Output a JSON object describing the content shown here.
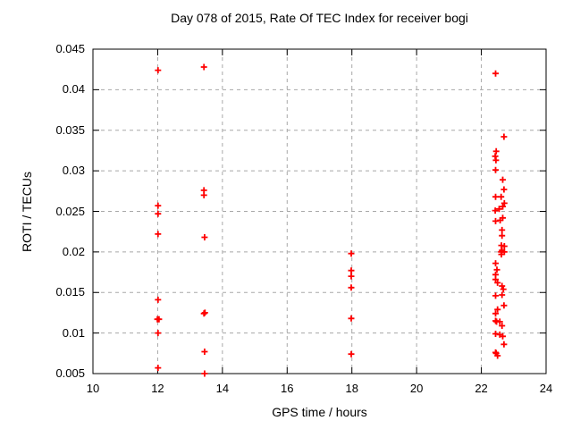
{
  "chart_data": {
    "type": "scatter",
    "title": "Day 078 of 2015, Rate Of TEC Index for receiver bogi",
    "xlabel": "GPS time / hours",
    "ylabel": "ROTI / TECUs",
    "xlim": [
      10,
      24
    ],
    "ylim": [
      0.005,
      0.045
    ],
    "xticks": [
      10,
      12,
      14,
      16,
      18,
      20,
      22,
      24
    ],
    "xtick_labels": [
      "10",
      "12",
      "14",
      "16",
      "18",
      "20",
      "22",
      "24"
    ],
    "yticks": [
      0.005,
      0.01,
      0.015,
      0.02,
      0.025,
      0.03,
      0.035,
      0.04,
      0.045
    ],
    "ytick_labels": [
      "0.005",
      "0.01",
      "0.015",
      "0.02",
      "0.025",
      "0.03",
      "0.035",
      "0.04",
      "0.045"
    ],
    "grid": true,
    "legend_position": "none",
    "marker": "plus",
    "colors": {
      "marker": "#ff0000",
      "grid": "#a8a8a8",
      "axis": "#000000",
      "background": "#ffffff"
    },
    "series": [
      {
        "name": "ROTI",
        "points": [
          [
            12.01,
            0.0424
          ],
          [
            12.01,
            0.0257
          ],
          [
            12.01,
            0.0247
          ],
          [
            12.01,
            0.0222
          ],
          [
            12.01,
            0.0141
          ],
          [
            11.99,
            0.0117
          ],
          [
            12.04,
            0.0117
          ],
          [
            12.01,
            0.01
          ],
          [
            12.01,
            0.0057
          ],
          [
            13.43,
            0.0428
          ],
          [
            13.43,
            0.0276
          ],
          [
            13.43,
            0.027
          ],
          [
            13.45,
            0.0218
          ],
          [
            13.43,
            0.0124
          ],
          [
            13.46,
            0.0125
          ],
          [
            13.45,
            0.0077
          ],
          [
            13.45,
            0.005
          ],
          [
            17.98,
            0.0198
          ],
          [
            17.98,
            0.0177
          ],
          [
            17.98,
            0.017
          ],
          [
            17.98,
            0.0156
          ],
          [
            17.98,
            0.0118
          ],
          [
            17.98,
            0.0074
          ],
          [
            22.44,
            0.042
          ],
          [
            22.7,
            0.0342
          ],
          [
            22.46,
            0.0324
          ],
          [
            22.43,
            0.0318
          ],
          [
            22.45,
            0.0313
          ],
          [
            22.44,
            0.0301
          ],
          [
            22.66,
            0.0289
          ],
          [
            22.7,
            0.0277
          ],
          [
            22.44,
            0.0268
          ],
          [
            22.61,
            0.0268
          ],
          [
            22.71,
            0.026
          ],
          [
            22.43,
            0.0251
          ],
          [
            22.55,
            0.0253
          ],
          [
            22.66,
            0.0256
          ],
          [
            22.44,
            0.0238
          ],
          [
            22.58,
            0.0239
          ],
          [
            22.66,
            0.0242
          ],
          [
            22.64,
            0.0227
          ],
          [
            22.64,
            0.022
          ],
          [
            22.62,
            0.0208
          ],
          [
            22.71,
            0.0207
          ],
          [
            22.64,
            0.0202
          ],
          [
            22.61,
            0.02
          ],
          [
            22.71,
            0.02
          ],
          [
            22.62,
            0.0197
          ],
          [
            22.44,
            0.0186
          ],
          [
            22.48,
            0.0178
          ],
          [
            22.44,
            0.0172
          ],
          [
            22.44,
            0.0166
          ],
          [
            22.5,
            0.0162
          ],
          [
            22.64,
            0.0158
          ],
          [
            22.68,
            0.0154
          ],
          [
            22.44,
            0.0146
          ],
          [
            22.64,
            0.0147
          ],
          [
            22.7,
            0.0134
          ],
          [
            22.5,
            0.0129
          ],
          [
            22.44,
            0.0124
          ],
          [
            22.44,
            0.0115
          ],
          [
            22.47,
            0.0114
          ],
          [
            22.57,
            0.0114
          ],
          [
            22.64,
            0.0109
          ],
          [
            22.44,
            0.0099
          ],
          [
            22.57,
            0.0098
          ],
          [
            22.66,
            0.0096
          ],
          [
            22.7,
            0.0086
          ],
          [
            22.44,
            0.0076
          ],
          [
            22.46,
            0.0075
          ],
          [
            22.5,
            0.0072
          ]
        ]
      }
    ]
  }
}
